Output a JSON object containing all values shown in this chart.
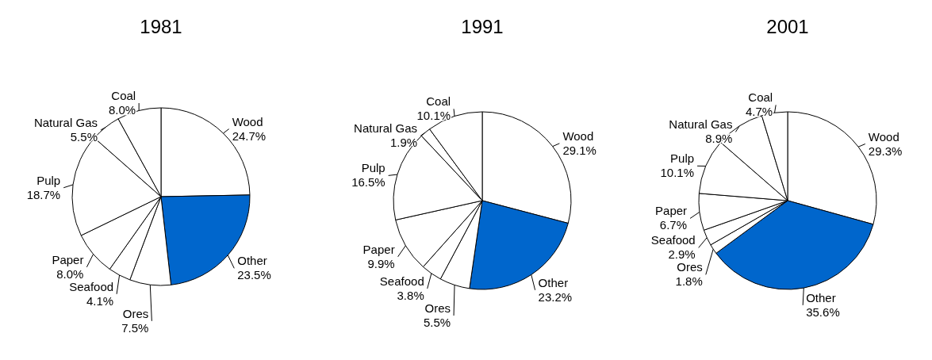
{
  "chart_data": [
    {
      "type": "pie",
      "title": "1981",
      "categories": [
        "Wood",
        "Other",
        "Ores",
        "Seafood",
        "Paper",
        "Pulp",
        "Natural Gas",
        "Coal"
      ],
      "values": [
        24.7,
        23.5,
        7.5,
        4.1,
        8.0,
        18.7,
        5.5,
        8.0
      ],
      "value_labels": [
        "24.7%",
        "23.5%",
        "7.5%",
        "4.1%",
        "8.0%",
        "18.7%",
        "5.5%",
        "8.0%"
      ],
      "colors": [
        "#ffffff",
        "#0066cc",
        "#ffffff",
        "#ffffff",
        "#ffffff",
        "#ffffff",
        "#ffffff",
        "#ffffff"
      ]
    },
    {
      "type": "pie",
      "title": "1991",
      "categories": [
        "Wood",
        "Other",
        "Ores",
        "Seafood",
        "Paper",
        "Pulp",
        "Natural Gas",
        "Coal"
      ],
      "values": [
        29.1,
        23.2,
        5.5,
        3.8,
        9.9,
        16.5,
        1.9,
        10.1
      ],
      "value_labels": [
        "29.1%",
        "23.2%",
        "5.5%",
        "3.8%",
        "9.9%",
        "16.5%",
        "1.9%",
        "10.1%"
      ],
      "colors": [
        "#ffffff",
        "#0066cc",
        "#ffffff",
        "#ffffff",
        "#ffffff",
        "#ffffff",
        "#ffffff",
        "#ffffff"
      ]
    },
    {
      "type": "pie",
      "title": "2001",
      "categories": [
        "Wood",
        "Other",
        "Ores",
        "Seafood",
        "Paper",
        "Pulp",
        "Natural Gas",
        "Coal"
      ],
      "values": [
        29.3,
        35.6,
        1.8,
        2.9,
        6.7,
        10.1,
        8.9,
        4.7
      ],
      "value_labels": [
        "29.3%",
        "35.6%",
        "1.8%",
        "2.9%",
        "6.7%",
        "10.1%",
        "8.9%",
        "4.7%"
      ],
      "colors": [
        "#ffffff",
        "#0066cc",
        "#ffffff",
        "#ffffff",
        "#ffffff",
        "#ffffff",
        "#ffffff",
        "#ffffff"
      ]
    }
  ]
}
